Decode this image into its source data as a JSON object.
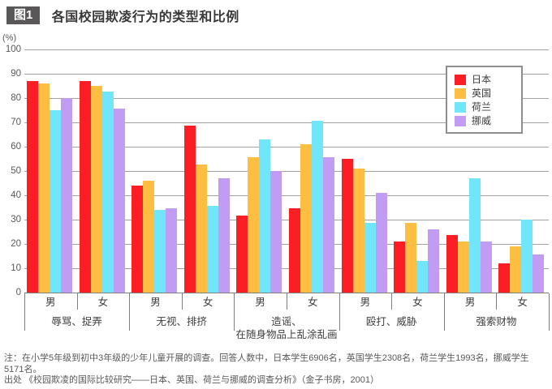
{
  "header": {
    "badge": "图1",
    "title": "各国校园欺凌行为的类型和比例"
  },
  "chart_data": {
    "type": "bar",
    "title": "各国校园欺凌行为的类型和比例",
    "unit_label": "(%)",
    "ylim": [
      0,
      100
    ],
    "ytick_step": 10,
    "grid": true,
    "legend_position": "top-right",
    "series": [
      {
        "name": "日本",
        "color": "#fb1e24"
      },
      {
        "name": "英国",
        "color": "#fdbe42"
      },
      {
        "name": "荷兰",
        "color": "#71e6fb"
      },
      {
        "name": "挪威",
        "color": "#c09df2"
      }
    ],
    "sub_labels": [
      "男",
      "女"
    ],
    "groups": [
      {
        "label_lines": [
          "辱骂、捉弄"
        ],
        "values": [
          [
            87,
            86,
            75,
            80
          ],
          [
            87,
            85,
            82.5,
            75.5
          ]
        ]
      },
      {
        "label_lines": [
          "无视、排挤"
        ],
        "values": [
          [
            44,
            46,
            34,
            34.5
          ],
          [
            68.5,
            52.5,
            35.5,
            47
          ]
        ]
      },
      {
        "label_lines": [
          "造谣、",
          "在随身物品上乱涂乱画"
        ],
        "values": [
          [
            31.5,
            55.5,
            63,
            50
          ],
          [
            34.5,
            61,
            70.5,
            55.5
          ]
        ]
      },
      {
        "label_lines": [
          "殴打、威胁"
        ],
        "values": [
          [
            55,
            51,
            28.5,
            41
          ],
          [
            21,
            28.5,
            13,
            26
          ]
        ]
      },
      {
        "label_lines": [
          "强索财物"
        ],
        "values": [
          [
            23.5,
            21,
            47,
            21
          ],
          [
            12,
            19,
            30,
            15.5
          ]
        ]
      }
    ]
  },
  "footnotes": {
    "note_lines": [
      "注：在小学5年级到初中3年级的少年儿童开展的调查。回答人数中，日本学生6906名，英国学生2308名，荷兰学生1993名，挪威学生",
      "5171名。"
    ],
    "source": "出处 《校园欺凌的国际比较研究——日本、英国、荷兰与挪威的调查分析》（金子书房，2001）"
  }
}
